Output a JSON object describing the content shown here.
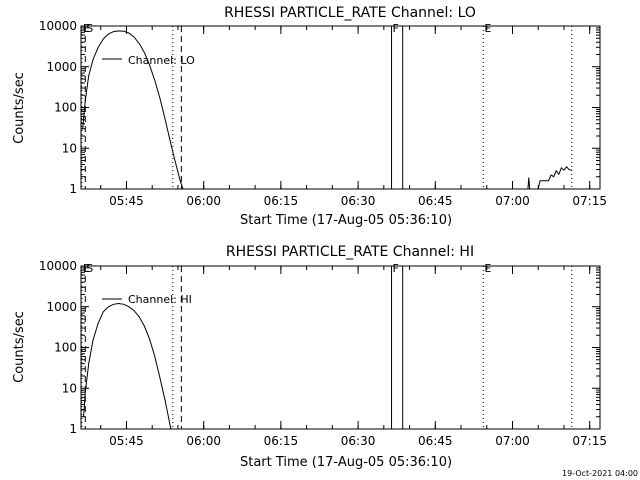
{
  "chart_data": [
    {
      "type": "line",
      "title": "RHESSI PARTICLE_RATE Channel: LO",
      "xlabel": "Start Time (17-Aug-05 05:36:10)",
      "ylabel": "Counts/sec",
      "y_scale": "log",
      "ylim": [
        1,
        10000
      ],
      "y_ticks": [
        1,
        10,
        100,
        1000,
        10000
      ],
      "y_tick_labels": [
        "1",
        "10",
        "100",
        "1000",
        "10000"
      ],
      "xlim": [
        "05:36:10",
        "07:17:00"
      ],
      "x_ticks": [
        "05:45",
        "06:00",
        "06:15",
        "06:30",
        "06:45",
        "07:00",
        "07:15"
      ],
      "legend": {
        "label": "Channel: LO",
        "placement": "top-left"
      },
      "markers": [
        {
          "label": "E",
          "time": "05:36:20",
          "style": "dotted"
        },
        {
          "label": "S",
          "time": "05:37:00",
          "style": "dashed"
        },
        {
          "label": "",
          "time": "05:54:00",
          "style": "dotted"
        },
        {
          "label": "",
          "time": "05:55:40",
          "style": "dashed"
        },
        {
          "label": "F",
          "time": "06:36:30",
          "style": "solid"
        },
        {
          "label": "",
          "time": "06:38:40",
          "style": "solid"
        },
        {
          "label": "E",
          "time": "06:54:20",
          "style": "dotted"
        },
        {
          "label": "",
          "time": "07:11:30",
          "style": "dotted"
        }
      ],
      "series": [
        {
          "name": "Channel: LO",
          "points": [
            [
              "05:36:30",
              30
            ],
            [
              "05:37:00",
              150
            ],
            [
              "05:37:40",
              600
            ],
            [
              "05:38:30",
              1500
            ],
            [
              "05:39:30",
              3000
            ],
            [
              "05:40:30",
              4800
            ],
            [
              "05:41:30",
              6400
            ],
            [
              "05:42:30",
              7300
            ],
            [
              "05:43:30",
              7600
            ],
            [
              "05:44:30",
              7400
            ],
            [
              "05:45:30",
              6700
            ],
            [
              "05:46:30",
              5300
            ],
            [
              "05:47:30",
              3700
            ],
            [
              "05:48:30",
              2200
            ],
            [
              "05:49:30",
              1100
            ],
            [
              "05:50:30",
              460
            ],
            [
              "05:51:30",
              170
            ],
            [
              "05:52:30",
              52
            ],
            [
              "05:53:30",
              15
            ],
            [
              "05:54:30",
              4.5
            ],
            [
              "05:55:30",
              1.5
            ],
            [
              "05:56:00",
              1.0
            ]
          ]
        },
        {
          "name": "",
          "points": [
            [
              "07:03:00",
              1.0
            ],
            [
              "07:03:10",
              1.9
            ],
            [
              "07:03:20",
              1.0
            ],
            [
              "07:05:00",
              1.0
            ],
            [
              "07:05:20",
              1.6
            ],
            [
              "07:07:00",
              1.6
            ],
            [
              "07:07:30",
              2.2
            ],
            [
              "07:08:00",
              2.0
            ],
            [
              "07:08:30",
              2.8
            ],
            [
              "07:09:00",
              2.3
            ],
            [
              "07:09:30",
              3.3
            ],
            [
              "07:10:00",
              2.9
            ],
            [
              "07:10:30",
              3.5
            ],
            [
              "07:11:00",
              3.0
            ],
            [
              "07:11:30",
              2.9
            ]
          ]
        }
      ]
    },
    {
      "type": "line",
      "title": "RHESSI PARTICLE_RATE Channel: HI",
      "xlabel": "Start Time (17-Aug-05 05:36:10)",
      "ylabel": "Counts/sec",
      "y_scale": "log",
      "ylim": [
        1,
        10000
      ],
      "y_ticks": [
        1,
        10,
        100,
        1000,
        10000
      ],
      "y_tick_labels": [
        "1",
        "10",
        "100",
        "1000",
        "10000"
      ],
      "xlim": [
        "05:36:10",
        "07:17:00"
      ],
      "x_ticks": [
        "05:45",
        "06:00",
        "06:15",
        "06:30",
        "06:45",
        "07:00",
        "07:15"
      ],
      "legend": {
        "label": "Channel: HI",
        "placement": "top-left"
      },
      "markers": [
        {
          "label": "E",
          "time": "05:36:20",
          "style": "dotted"
        },
        {
          "label": "S",
          "time": "05:37:00",
          "style": "dashed"
        },
        {
          "label": "",
          "time": "05:54:00",
          "style": "dotted"
        },
        {
          "label": "",
          "time": "05:55:40",
          "style": "dashed"
        },
        {
          "label": "F",
          "time": "06:36:30",
          "style": "solid"
        },
        {
          "label": "",
          "time": "06:38:40",
          "style": "solid"
        },
        {
          "label": "E",
          "time": "06:54:20",
          "style": "dotted"
        },
        {
          "label": "",
          "time": "07:11:30",
          "style": "dotted"
        }
      ],
      "series": [
        {
          "name": "Channel: HI",
          "points": [
            [
              "05:36:40",
              2
            ],
            [
              "05:37:00",
              8
            ],
            [
              "05:37:40",
              40
            ],
            [
              "05:38:30",
              150
            ],
            [
              "05:39:30",
              400
            ],
            [
              "05:40:30",
              750
            ],
            [
              "05:41:30",
              1000
            ],
            [
              "05:42:30",
              1150
            ],
            [
              "05:43:30",
              1200
            ],
            [
              "05:44:30",
              1150
            ],
            [
              "05:45:30",
              1000
            ],
            [
              "05:46:30",
              800
            ],
            [
              "05:47:30",
              560
            ],
            [
              "05:48:30",
              330
            ],
            [
              "05:49:30",
              160
            ],
            [
              "05:50:30",
              60
            ],
            [
              "05:51:30",
              18
            ],
            [
              "05:52:30",
              5
            ],
            [
              "05:53:00",
              2.5
            ],
            [
              "05:53:30",
              1.2
            ],
            [
              "05:53:40",
              1.0
            ]
          ]
        }
      ]
    }
  ],
  "footer": {
    "timestamp": "19-Oct-2021 04:00"
  }
}
